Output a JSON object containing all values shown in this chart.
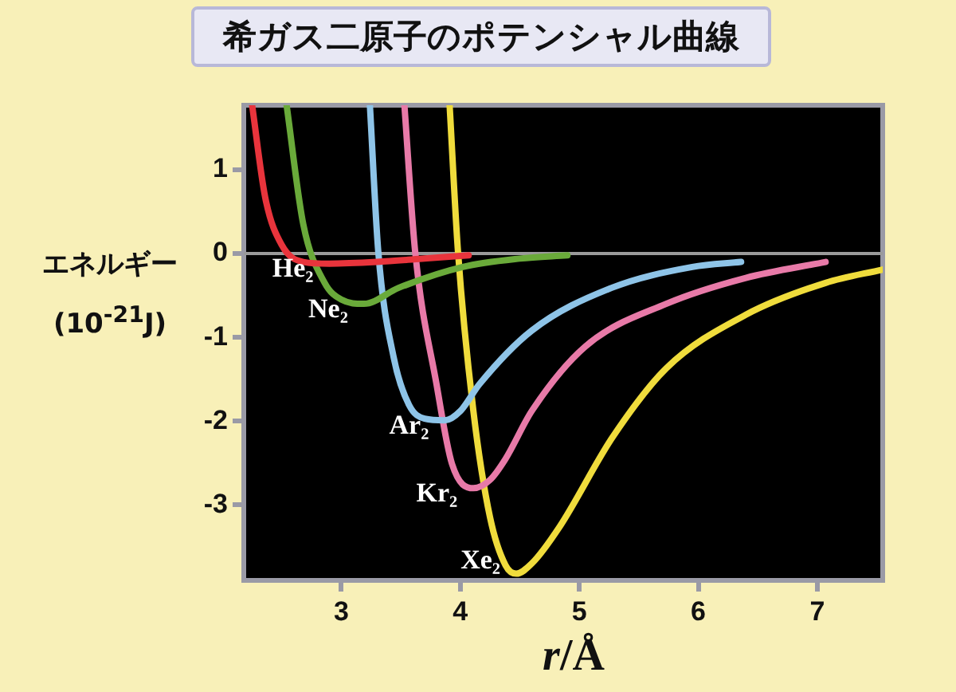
{
  "chart_data": {
    "type": "line",
    "title": "希ガス二原子のポテンシャル曲線",
    "xlabel": "r/Å",
    "ylabel": "エネルギー\n(10$^{-21}$J)",
    "xlim": [
      2.18,
      7.55
    ],
    "ylim": [
      -3.9,
      1.77
    ],
    "xticks": [
      3,
      4,
      5,
      6,
      7
    ],
    "yticks": [
      1,
      0,
      -1,
      -2,
      -3
    ],
    "grid": false,
    "legend": false,
    "marker": "none",
    "line_style": "solid",
    "ref_lines": [
      {
        "axis": "y",
        "value": 0,
        "color": "#9a9a9a"
      }
    ],
    "series": [
      {
        "name": "He₂",
        "color": "#e8343c",
        "x": [
          2.25,
          2.36,
          2.5,
          2.68,
          2.9,
          3.3,
          3.7,
          4.07
        ],
        "values": [
          1.77,
          0.67,
          0.1,
          -0.1,
          -0.12,
          -0.1,
          -0.06,
          -0.02
        ]
      },
      {
        "name": "Ne₂",
        "color": "#6aaa3a",
        "x": [
          2.54,
          2.68,
          2.86,
          3.0,
          3.19,
          3.48,
          4.02,
          4.5,
          4.9
        ],
        "values": [
          1.77,
          0.35,
          -0.35,
          -0.55,
          -0.6,
          -0.41,
          -0.16,
          -0.06,
          -0.02
        ]
      },
      {
        "name": "Ar₂",
        "color": "#8ec4e8",
        "x": [
          3.24,
          3.31,
          3.44,
          3.57,
          3.7,
          3.87,
          4.0,
          4.16,
          4.6,
          5.27,
          5.95,
          6.36
        ],
        "values": [
          1.77,
          0.03,
          -1.24,
          -1.81,
          -1.97,
          -1.99,
          -1.88,
          -1.56,
          -0.92,
          -0.41,
          -0.16,
          -0.1
        ]
      },
      {
        "name": "Kr₂",
        "color": "#e87aa8",
        "x": [
          3.53,
          3.62,
          3.8,
          3.93,
          4.11,
          4.25,
          4.38,
          4.6,
          5.05,
          5.73,
          6.4,
          7.07
        ],
        "values": [
          1.77,
          0.03,
          -1.56,
          -2.51,
          -2.8,
          -2.7,
          -2.45,
          -1.88,
          -1.11,
          -0.6,
          -0.29,
          -0.1
        ]
      },
      {
        "name": "Xe₂",
        "color": "#f0dc3c",
        "x": [
          3.91,
          3.98,
          4.11,
          4.25,
          4.38,
          4.47,
          4.6,
          4.83,
          5.28,
          5.73,
          6.4,
          7.07,
          7.55
        ],
        "values": [
          1.77,
          0.03,
          -1.88,
          -3.15,
          -3.72,
          -3.82,
          -3.7,
          -3.27,
          -2.19,
          -1.37,
          -0.73,
          -0.35,
          -0.19
        ]
      }
    ]
  }
}
